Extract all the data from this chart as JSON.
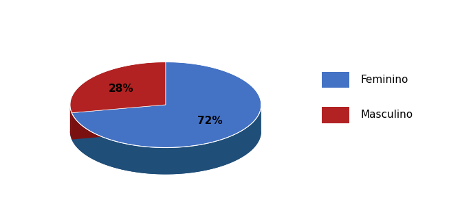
{
  "slices": [
    72,
    28
  ],
  "labels": [
    "Feminino",
    "Masculino"
  ],
  "colors": [
    "#4472C4",
    "#B22222"
  ],
  "side_colors": [
    "#1F4E79",
    "#7B1010"
  ],
  "autopct_labels": [
    "72%",
    "28%"
  ],
  "legend_labels": [
    "Feminino",
    "Masculino"
  ],
  "startangle": 90,
  "background_color": "#ffffff",
  "label_fontsize": 11,
  "legend_fontsize": 11
}
